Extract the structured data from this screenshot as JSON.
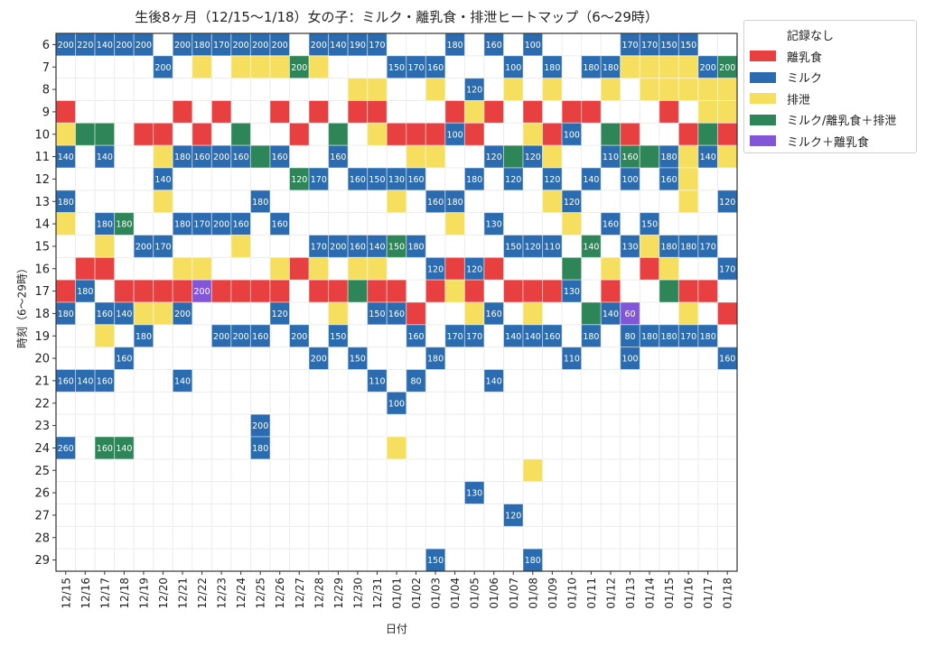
{
  "chart_data": {
    "type": "heatmap",
    "title": "生後8ヶ月（12/15〜1/18）女の子：ミルク・離乳食・排泄ヒートマップ（6〜29時）",
    "xlabel": "日付",
    "ylabel": "時刻（6〜29時）",
    "legend_position": "outside-top-right",
    "grid": true,
    "categories": [
      "記録なし",
      "離乳食",
      "ミルク",
      "排泄",
      "ミルク/離乳食＋排泄",
      "ミルク＋離乳食"
    ],
    "category_colors": [
      "#ffffff",
      "#e84040",
      "#2b6cb0",
      "#f6df5e",
      "#2e8557",
      "#8256d6"
    ],
    "x": [
      "12/15",
      "12/16",
      "12/17",
      "12/18",
      "12/19",
      "12/20",
      "12/21",
      "12/22",
      "12/23",
      "12/24",
      "12/25",
      "12/26",
      "12/27",
      "12/28",
      "12/29",
      "12/30",
      "12/31",
      "01/01",
      "01/02",
      "01/03",
      "01/04",
      "01/05",
      "01/06",
      "01/07",
      "01/08",
      "01/09",
      "01/10",
      "01/11",
      "01/12",
      "01/13",
      "01/14",
      "01/15",
      "01/16",
      "01/17",
      "01/18"
    ],
    "y": [
      6,
      7,
      8,
      9,
      10,
      11,
      12,
      13,
      14,
      15,
      16,
      17,
      18,
      19,
      20,
      21,
      22,
      23,
      24,
      25,
      26,
      27,
      28,
      29
    ],
    "cells_note": "each entry: [hour, date_index, category_index, milk_ml_or_null]",
    "cells": [
      [
        6,
        0,
        2,
        200
      ],
      [
        6,
        1,
        2,
        220
      ],
      [
        6,
        2,
        2,
        140
      ],
      [
        6,
        3,
        2,
        200
      ],
      [
        6,
        4,
        2,
        200
      ],
      [
        6,
        6,
        2,
        200
      ],
      [
        6,
        7,
        2,
        180
      ],
      [
        6,
        8,
        2,
        170
      ],
      [
        6,
        9,
        2,
        200
      ],
      [
        6,
        10,
        2,
        200
      ],
      [
        6,
        11,
        2,
        200
      ],
      [
        6,
        13,
        2,
        200
      ],
      [
        6,
        14,
        2,
        140
      ],
      [
        6,
        15,
        2,
        190
      ],
      [
        6,
        16,
        2,
        170
      ],
      [
        6,
        20,
        2,
        180
      ],
      [
        6,
        22,
        2,
        160
      ],
      [
        6,
        24,
        2,
        100
      ],
      [
        6,
        29,
        2,
        170
      ],
      [
        6,
        30,
        2,
        170
      ],
      [
        6,
        31,
        2,
        150
      ],
      [
        6,
        32,
        2,
        150
      ],
      [
        7,
        5,
        2,
        200
      ],
      [
        7,
        7,
        3,
        null
      ],
      [
        7,
        9,
        3,
        null
      ],
      [
        7,
        10,
        3,
        null
      ],
      [
        7,
        11,
        3,
        null
      ],
      [
        7,
        12,
        4,
        200
      ],
      [
        7,
        13,
        3,
        null
      ],
      [
        7,
        17,
        2,
        150
      ],
      [
        7,
        18,
        2,
        170
      ],
      [
        7,
        19,
        2,
        160
      ],
      [
        7,
        23,
        2,
        100
      ],
      [
        7,
        25,
        2,
        180
      ],
      [
        7,
        27,
        2,
        180
      ],
      [
        7,
        28,
        2,
        180
      ],
      [
        7,
        29,
        3,
        null
      ],
      [
        7,
        30,
        3,
        null
      ],
      [
        7,
        31,
        3,
        null
      ],
      [
        7,
        32,
        3,
        null
      ],
      [
        7,
        33,
        2,
        200
      ],
      [
        7,
        34,
        4,
        200
      ],
      [
        8,
        15,
        3,
        null
      ],
      [
        8,
        16,
        3,
        null
      ],
      [
        8,
        19,
        3,
        null
      ],
      [
        8,
        21,
        2,
        120
      ],
      [
        8,
        23,
        3,
        null
      ],
      [
        8,
        25,
        3,
        null
      ],
      [
        8,
        28,
        3,
        null
      ],
      [
        8,
        30,
        3,
        null
      ],
      [
        8,
        31,
        3,
        null
      ],
      [
        8,
        32,
        3,
        null
      ],
      [
        8,
        33,
        3,
        null
      ],
      [
        8,
        34,
        3,
        null
      ],
      [
        9,
        0,
        1,
        null
      ],
      [
        9,
        6,
        1,
        null
      ],
      [
        9,
        8,
        1,
        null
      ],
      [
        9,
        11,
        1,
        null
      ],
      [
        9,
        13,
        1,
        null
      ],
      [
        9,
        15,
        1,
        null
      ],
      [
        9,
        16,
        1,
        null
      ],
      [
        9,
        20,
        1,
        null
      ],
      [
        9,
        21,
        3,
        null
      ],
      [
        9,
        22,
        1,
        null
      ],
      [
        9,
        24,
        1,
        null
      ],
      [
        9,
        26,
        1,
        null
      ],
      [
        9,
        27,
        1,
        null
      ],
      [
        9,
        31,
        1,
        null
      ],
      [
        9,
        33,
        3,
        null
      ],
      [
        9,
        34,
        3,
        null
      ],
      [
        10,
        0,
        3,
        null
      ],
      [
        10,
        1,
        4,
        null
      ],
      [
        10,
        2,
        4,
        null
      ],
      [
        10,
        4,
        1,
        null
      ],
      [
        10,
        5,
        1,
        null
      ],
      [
        10,
        7,
        1,
        null
      ],
      [
        10,
        9,
        4,
        null
      ],
      [
        10,
        12,
        1,
        null
      ],
      [
        10,
        14,
        4,
        null
      ],
      [
        10,
        16,
        3,
        null
      ],
      [
        10,
        17,
        1,
        null
      ],
      [
        10,
        18,
        1,
        null
      ],
      [
        10,
        19,
        1,
        null
      ],
      [
        10,
        20,
        2,
        100
      ],
      [
        10,
        21,
        1,
        null
      ],
      [
        10,
        24,
        3,
        null
      ],
      [
        10,
        25,
        1,
        null
      ],
      [
        10,
        26,
        2,
        100
      ],
      [
        10,
        28,
        4,
        null
      ],
      [
        10,
        29,
        1,
        null
      ],
      [
        10,
        32,
        1,
        null
      ],
      [
        10,
        33,
        4,
        null
      ],
      [
        10,
        34,
        1,
        null
      ],
      [
        11,
        0,
        2,
        140
      ],
      [
        11,
        2,
        2,
        140
      ],
      [
        11,
        5,
        3,
        null
      ],
      [
        11,
        6,
        2,
        180
      ],
      [
        11,
        7,
        2,
        160
      ],
      [
        11,
        8,
        2,
        200
      ],
      [
        11,
        9,
        2,
        160
      ],
      [
        11,
        10,
        4,
        null
      ],
      [
        11,
        11,
        2,
        160
      ],
      [
        11,
        14,
        2,
        160
      ],
      [
        11,
        18,
        3,
        null
      ],
      [
        11,
        19,
        3,
        null
      ],
      [
        11,
        22,
        2,
        120
      ],
      [
        11,
        23,
        4,
        null
      ],
      [
        11,
        24,
        2,
        120
      ],
      [
        11,
        25,
        3,
        null
      ],
      [
        11,
        28,
        2,
        110
      ],
      [
        11,
        29,
        4,
        160
      ],
      [
        11,
        30,
        4,
        null
      ],
      [
        11,
        31,
        2,
        180
      ],
      [
        11,
        32,
        3,
        null
      ],
      [
        11,
        33,
        2,
        140
      ],
      [
        11,
        34,
        3,
        null
      ],
      [
        12,
        5,
        2,
        140
      ],
      [
        12,
        12,
        4,
        120
      ],
      [
        12,
        13,
        2,
        170
      ],
      [
        12,
        15,
        2,
        160
      ],
      [
        12,
        16,
        2,
        150
      ],
      [
        12,
        17,
        2,
        130
      ],
      [
        12,
        18,
        2,
        160
      ],
      [
        12,
        21,
        2,
        180
      ],
      [
        12,
        23,
        2,
        120
      ],
      [
        12,
        25,
        2,
        120
      ],
      [
        12,
        27,
        2,
        140
      ],
      [
        12,
        29,
        2,
        100
      ],
      [
        12,
        31,
        2,
        160
      ],
      [
        12,
        32,
        3,
        null
      ],
      [
        13,
        0,
        2,
        180
      ],
      [
        13,
        5,
        3,
        null
      ],
      [
        13,
        10,
        2,
        180
      ],
      [
        13,
        17,
        3,
        null
      ],
      [
        13,
        19,
        2,
        160
      ],
      [
        13,
        20,
        2,
        180
      ],
      [
        13,
        25,
        3,
        null
      ],
      [
        13,
        26,
        2,
        120
      ],
      [
        13,
        32,
        3,
        null
      ],
      [
        13,
        34,
        2,
        120
      ],
      [
        14,
        0,
        3,
        null
      ],
      [
        14,
        2,
        2,
        180
      ],
      [
        14,
        3,
        4,
        180
      ],
      [
        14,
        6,
        2,
        180
      ],
      [
        14,
        7,
        2,
        170
      ],
      [
        14,
        8,
        2,
        200
      ],
      [
        14,
        9,
        2,
        160
      ],
      [
        14,
        11,
        2,
        160
      ],
      [
        14,
        20,
        3,
        null
      ],
      [
        14,
        22,
        2,
        130
      ],
      [
        14,
        26,
        3,
        null
      ],
      [
        14,
        28,
        2,
        160
      ],
      [
        14,
        30,
        2,
        150
      ],
      [
        15,
        2,
        3,
        null
      ],
      [
        15,
        4,
        2,
        200
      ],
      [
        15,
        5,
        2,
        170
      ],
      [
        15,
        9,
        3,
        null
      ],
      [
        15,
        13,
        2,
        170
      ],
      [
        15,
        14,
        2,
        200
      ],
      [
        15,
        15,
        2,
        160
      ],
      [
        15,
        16,
        2,
        140
      ],
      [
        15,
        17,
        4,
        150
      ],
      [
        15,
        18,
        2,
        180
      ],
      [
        15,
        23,
        2,
        150
      ],
      [
        15,
        24,
        2,
        120
      ],
      [
        15,
        25,
        2,
        110
      ],
      [
        15,
        27,
        4,
        140
      ],
      [
        15,
        29,
        2,
        130
      ],
      [
        15,
        30,
        3,
        null
      ],
      [
        15,
        31,
        2,
        180
      ],
      [
        15,
        32,
        2,
        180
      ],
      [
        15,
        33,
        2,
        170
      ],
      [
        16,
        1,
        1,
        null
      ],
      [
        16,
        2,
        1,
        null
      ],
      [
        16,
        6,
        3,
        null
      ],
      [
        16,
        7,
        3,
        null
      ],
      [
        16,
        11,
        3,
        null
      ],
      [
        16,
        12,
        1,
        null
      ],
      [
        16,
        13,
        3,
        null
      ],
      [
        16,
        15,
        3,
        null
      ],
      [
        16,
        16,
        3,
        null
      ],
      [
        16,
        19,
        2,
        120
      ],
      [
        16,
        20,
        1,
        null
      ],
      [
        16,
        21,
        2,
        120
      ],
      [
        16,
        22,
        1,
        null
      ],
      [
        16,
        26,
        4,
        null
      ],
      [
        16,
        28,
        3,
        null
      ],
      [
        16,
        30,
        1,
        null
      ],
      [
        16,
        31,
        3,
        null
      ],
      [
        16,
        34,
        2,
        170
      ],
      [
        17,
        0,
        1,
        null
      ],
      [
        17,
        1,
        2,
        180
      ],
      [
        17,
        3,
        1,
        null
      ],
      [
        17,
        4,
        1,
        null
      ],
      [
        17,
        5,
        1,
        null
      ],
      [
        17,
        6,
        1,
        null
      ],
      [
        17,
        7,
        5,
        200
      ],
      [
        17,
        8,
        1,
        null
      ],
      [
        17,
        9,
        1,
        null
      ],
      [
        17,
        10,
        1,
        null
      ],
      [
        17,
        11,
        1,
        null
      ],
      [
        17,
        13,
        1,
        null
      ],
      [
        17,
        14,
        1,
        null
      ],
      [
        17,
        15,
        4,
        null
      ],
      [
        17,
        16,
        1,
        null
      ],
      [
        17,
        17,
        1,
        null
      ],
      [
        17,
        19,
        1,
        null
      ],
      [
        17,
        20,
        3,
        null
      ],
      [
        17,
        21,
        1,
        null
      ],
      [
        17,
        23,
        1,
        null
      ],
      [
        17,
        24,
        1,
        null
      ],
      [
        17,
        25,
        1,
        null
      ],
      [
        17,
        26,
        2,
        130
      ],
      [
        17,
        28,
        1,
        null
      ],
      [
        17,
        31,
        4,
        null
      ],
      [
        17,
        32,
        1,
        null
      ],
      [
        17,
        33,
        1,
        null
      ],
      [
        18,
        0,
        2,
        180
      ],
      [
        18,
        2,
        2,
        160
      ],
      [
        18,
        3,
        2,
        140
      ],
      [
        18,
        4,
        3,
        null
      ],
      [
        18,
        5,
        3,
        null
      ],
      [
        18,
        6,
        2,
        200
      ],
      [
        18,
        11,
        2,
        120
      ],
      [
        18,
        14,
        3,
        null
      ],
      [
        18,
        16,
        2,
        150
      ],
      [
        18,
        17,
        2,
        160
      ],
      [
        18,
        18,
        1,
        null
      ],
      [
        18,
        21,
        3,
        null
      ],
      [
        18,
        22,
        2,
        160
      ],
      [
        18,
        24,
        3,
        null
      ],
      [
        18,
        27,
        4,
        null
      ],
      [
        18,
        28,
        2,
        140
      ],
      [
        18,
        29,
        5,
        60
      ],
      [
        18,
        32,
        3,
        null
      ],
      [
        18,
        34,
        1,
        null
      ],
      [
        19,
        2,
        3,
        null
      ],
      [
        19,
        4,
        2,
        180
      ],
      [
        19,
        8,
        2,
        200
      ],
      [
        19,
        9,
        2,
        200
      ],
      [
        19,
        10,
        2,
        160
      ],
      [
        19,
        12,
        2,
        200
      ],
      [
        19,
        14,
        2,
        150
      ],
      [
        19,
        18,
        2,
        160
      ],
      [
        19,
        20,
        2,
        170
      ],
      [
        19,
        21,
        2,
        170
      ],
      [
        19,
        23,
        2,
        140
      ],
      [
        19,
        24,
        2,
        140
      ],
      [
        19,
        25,
        2,
        160
      ],
      [
        19,
        27,
        2,
        180
      ],
      [
        19,
        29,
        2,
        80
      ],
      [
        19,
        30,
        2,
        180
      ],
      [
        19,
        31,
        2,
        180
      ],
      [
        19,
        32,
        2,
        170
      ],
      [
        19,
        33,
        2,
        180
      ],
      [
        20,
        3,
        2,
        160
      ],
      [
        20,
        13,
        2,
        200
      ],
      [
        20,
        15,
        2,
        150
      ],
      [
        20,
        19,
        2,
        180
      ],
      [
        20,
        26,
        2,
        110
      ],
      [
        20,
        29,
        2,
        100
      ],
      [
        20,
        34,
        2,
        160
      ],
      [
        21,
        0,
        2,
        160
      ],
      [
        21,
        1,
        2,
        140
      ],
      [
        21,
        2,
        2,
        160
      ],
      [
        21,
        6,
        2,
        140
      ],
      [
        21,
        16,
        2,
        110
      ],
      [
        21,
        18,
        2,
        80
      ],
      [
        21,
        22,
        2,
        140
      ],
      [
        22,
        17,
        2,
        100
      ],
      [
        23,
        10,
        2,
        200
      ],
      [
        24,
        0,
        2,
        260
      ],
      [
        24,
        2,
        4,
        160
      ],
      [
        24,
        3,
        4,
        140
      ],
      [
        24,
        10,
        2,
        180
      ],
      [
        24,
        17,
        3,
        null
      ],
      [
        25,
        24,
        3,
        null
      ],
      [
        26,
        21,
        2,
        130
      ],
      [
        27,
        23,
        2,
        120
      ],
      [
        29,
        19,
        2,
        150
      ],
      [
        29,
        24,
        2,
        180
      ]
    ]
  }
}
